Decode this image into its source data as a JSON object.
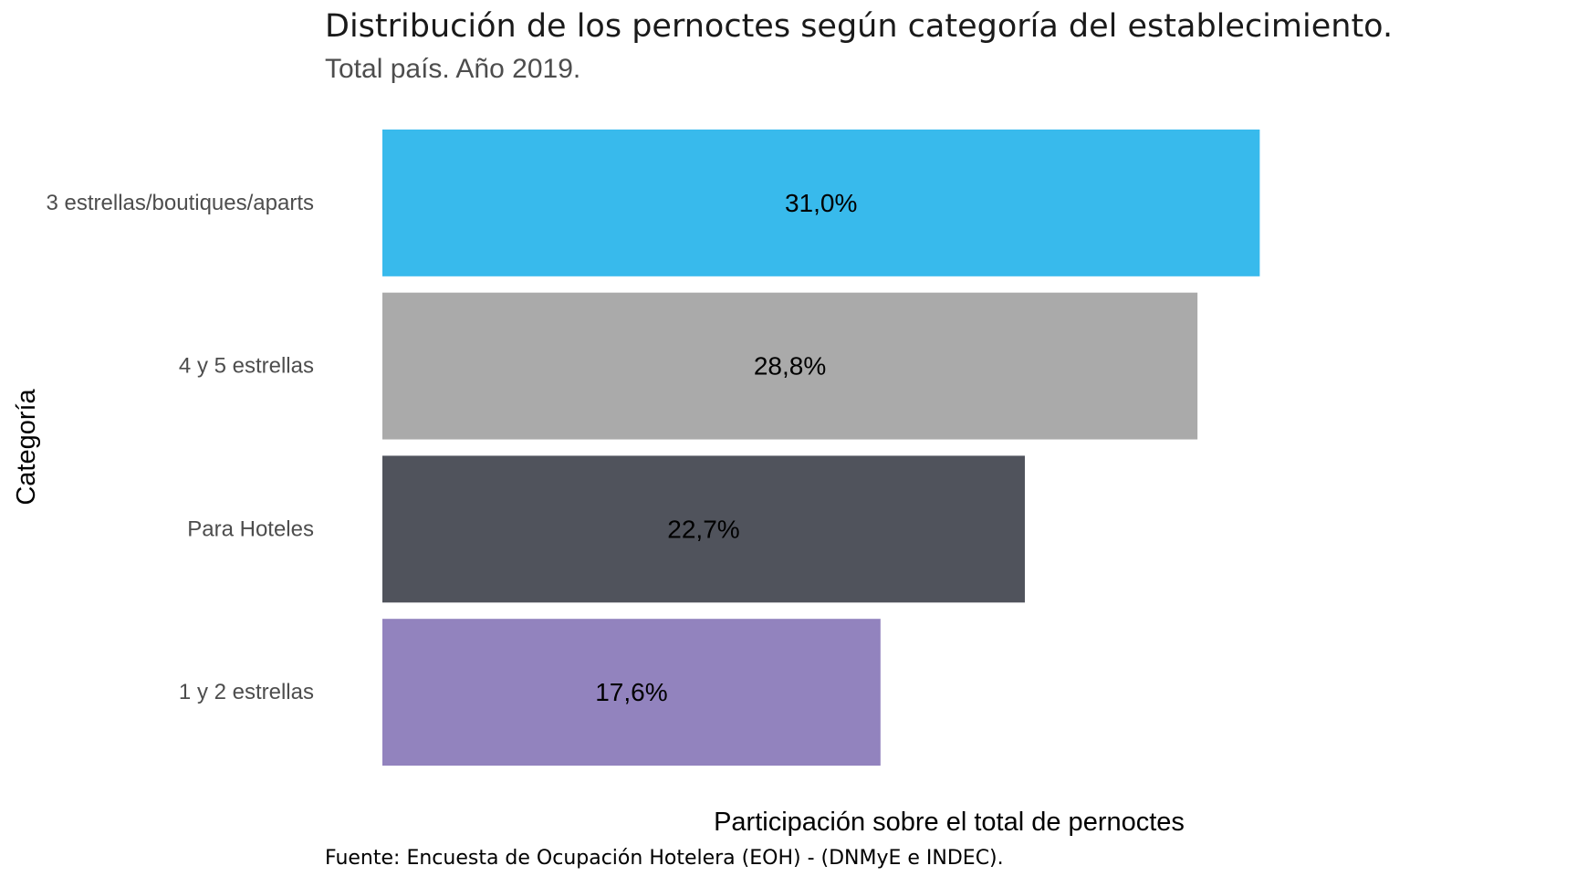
{
  "chart_data": {
    "type": "bar",
    "orientation": "horizontal",
    "title": "Distribución de los pernoctes según categoría del establecimiento.",
    "subtitle": "Total país. Año 2019.",
    "xlabel": "Participación sobre el total de pernoctes",
    "ylabel": "Categoría",
    "caption": "Fuente: Encuesta de Ocupación Hotelera (EOH) - (DNMyE e INDEC).",
    "categories": [
      "3 estrellas/boutiques/aparts",
      "4 y 5 estrellas",
      "Para Hoteles",
      "1 y 2 estrellas"
    ],
    "values": [
      31.0,
      28.8,
      22.7,
      17.6
    ],
    "value_labels": [
      "31,0%",
      "28,8%",
      "22,7%",
      "17,6%"
    ],
    "colors": [
      "#38baec",
      "#aaaaaa",
      "#50535c",
      "#9283be"
    ],
    "xlim": [
      0,
      32.6
    ],
    "grid": false,
    "legend": "none"
  }
}
